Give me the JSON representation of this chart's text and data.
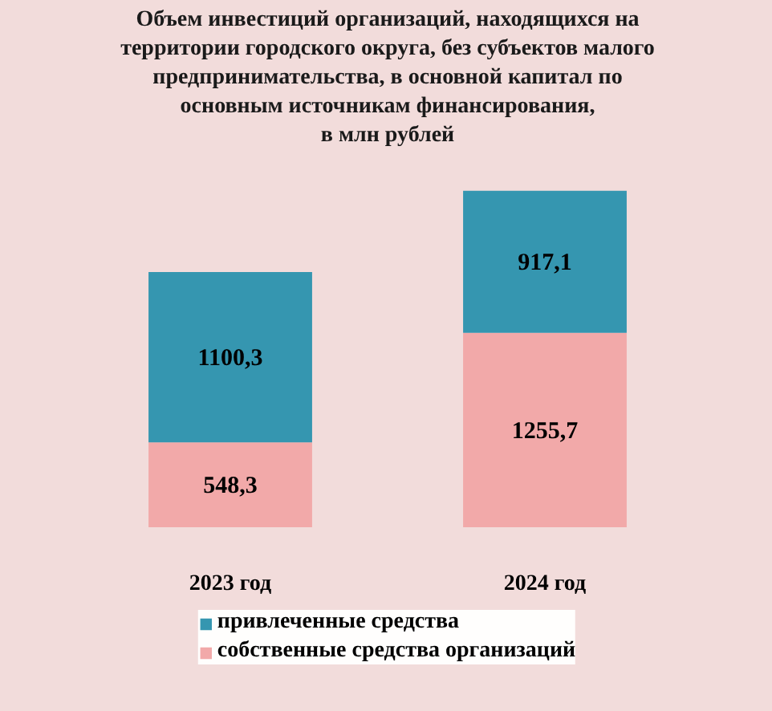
{
  "chart_data": {
    "type": "bar",
    "title": "Объем инвестиций организаций, находящихся на\nтерритории городского округа, без субъектов малого\nпредпринимательства, в основной капитал по\nосновным источникам финансирования,\nв млн рублей",
    "categories": [
      "2023 год",
      "2024 год"
    ],
    "stacked": true,
    "series": [
      {
        "name": "собственные средства организаций",
        "color": "#f2a9a9",
        "values": [
          548.3,
          1255.7
        ],
        "value_labels": [
          "548,3",
          "1255,7"
        ]
      },
      {
        "name": "привлеченные средства",
        "color": "#3596b0",
        "values": [
          1100.3,
          917.1
        ],
        "value_labels": [
          "1100,3",
          "917,1"
        ]
      }
    ],
    "tick_labels": "x",
    "legend": "bottom"
  }
}
